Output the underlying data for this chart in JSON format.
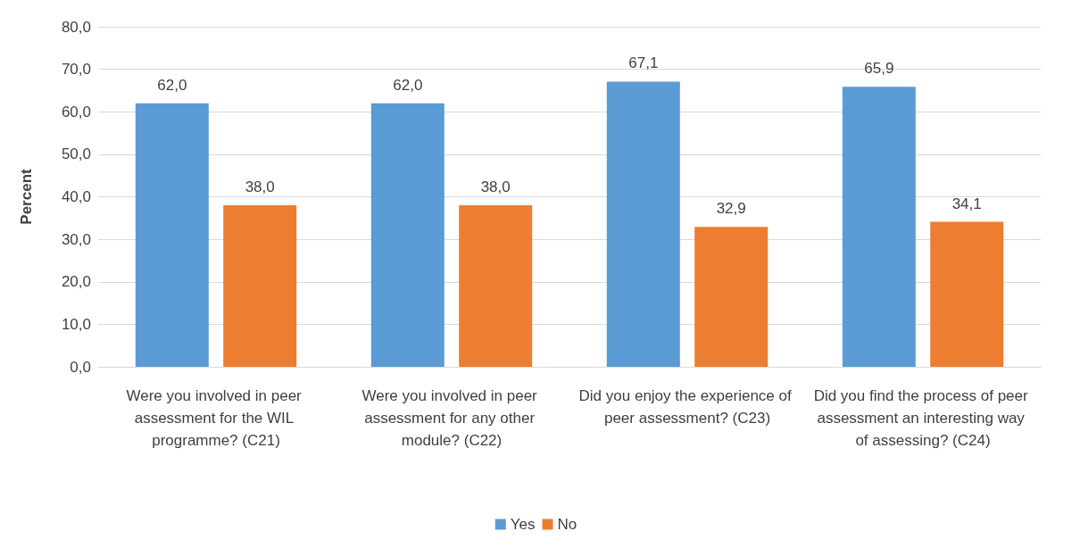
{
  "chart_data": {
    "type": "bar",
    "ylabel": "Percent",
    "categories": [
      "Were you involved in peer assessment for the WIL programme? (C21)",
      "Were you involved in peer assessment for any other module? (C22)",
      "Did you enjoy the experience of peer assessment? (C23)",
      "Did you find the process of peer assessment an interesting way of assessing? (C24)"
    ],
    "series": [
      {
        "name": "Yes",
        "color": "#5b9bd5",
        "values": [
          62.0,
          62.0,
          67.1,
          65.9
        ],
        "value_labels": [
          "62,0",
          "62,0",
          "67,1",
          "65,9"
        ]
      },
      {
        "name": "No",
        "color": "#ed7d31",
        "values": [
          38.0,
          38.0,
          32.9,
          34.1
        ],
        "value_labels": [
          "38,0",
          "38,0",
          "32,9",
          "34,1"
        ]
      }
    ],
    "ylim": [
      0,
      80
    ],
    "yticks": [
      {
        "value": 0,
        "label": "0,0"
      },
      {
        "value": 10,
        "label": "10,0"
      },
      {
        "value": 20,
        "label": "20,0"
      },
      {
        "value": 30,
        "label": "30,0"
      },
      {
        "value": 40,
        "label": "40,0"
      },
      {
        "value": 50,
        "label": "50,0"
      },
      {
        "value": 60,
        "label": "60,0"
      },
      {
        "value": 70,
        "label": "70,0"
      },
      {
        "value": 80,
        "label": "80,0"
      }
    ],
    "grid": "y",
    "legend": "bottom"
  }
}
